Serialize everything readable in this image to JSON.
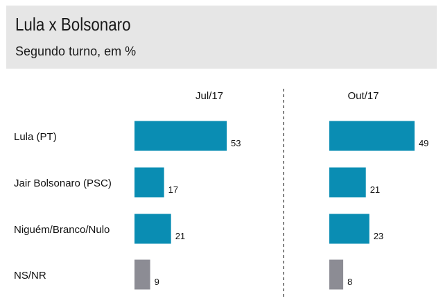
{
  "header": {
    "title": "Lula x Bolsonaro",
    "subtitle": "Segundo turno, em %"
  },
  "chart_data": {
    "type": "bar",
    "orientation": "horizontal",
    "title": "Lula x Bolsonaro",
    "subtitle": "Segundo turno, em %",
    "categories": [
      "Lula (PT)",
      "Jair Bolsonaro (PSC)",
      "Niguém/Branco/Nulo",
      "NS/NR"
    ],
    "series": [
      {
        "name": "Jul/17",
        "values": [
          53,
          17,
          21,
          9
        ]
      },
      {
        "name": "Out/17",
        "values": [
          49,
          21,
          23,
          8
        ]
      }
    ],
    "colors": [
      "#0a8db3",
      "#0a8db3",
      "#0a8db3",
      "#8c8c94"
    ],
    "xlim": [
      0,
      53
    ],
    "grid": false,
    "legend": "none"
  }
}
